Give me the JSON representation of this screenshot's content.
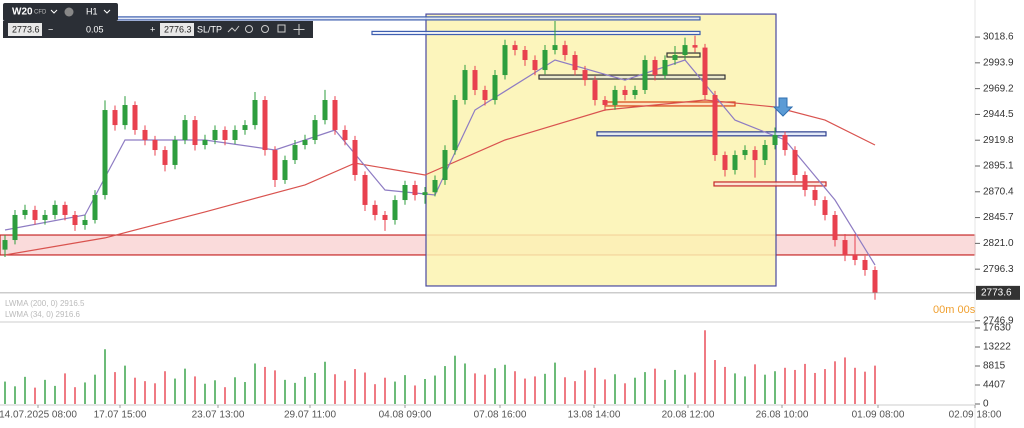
{
  "toolbar": {
    "symbol": "W20",
    "kind": "CFD",
    "timeframe": "H1",
    "bid": "2773.6",
    "step": "0.05",
    "ask": "2776.3",
    "sltp": "SL/TP"
  },
  "chart_data": {
    "type": "candlestick",
    "up_color": "#2e9e3e",
    "down_color": "#e8414f",
    "open": [
      2815.0,
      2824.2,
      2848.2,
      2853.0,
      2843.4,
      2848.2,
      2857.8,
      2848.2,
      2838.6,
      2843.4,
      2867.3,
      2948.7,
      2934.3,
      2953.5,
      2929.6,
      2920.0,
      2910.4,
      2896.1,
      2920.0,
      2939.1,
      2915.2,
      2920.0,
      2929.6,
      2920.0,
      2929.6,
      2934.3,
      2958.3,
      2910.4,
      2881.7,
      2900.8,
      2915.2,
      2920.0,
      2939.1,
      2958.3,
      2929.6,
      2920.0,
      2886.5,
      2857.8,
      2848.2,
      2843.4,
      2862.5,
      2876.9,
      2867.3,
      2870.0,
      2881.7,
      2910.4,
      2958.3,
      2987.0,
      2967.9,
      2958.3,
      2982.2,
      3010.9,
      3006.2,
      2996.6,
      2987.0,
      3006.2,
      3010.9,
      3001.4,
      2987.0,
      2977.4,
      2958.3,
      2953.5,
      2967.9,
      2963.1,
      2967.9,
      2996.6,
      2982.2,
      2996.6,
      3001.4,
      3010.9,
      3008.5,
      2963.1,
      2905.6,
      2891.3,
      2905.6,
      2910.4,
      2900.8,
      2915.2,
      2924.8,
      2910.4,
      2886.5,
      2872.1,
      2862.5,
      2848.2,
      2824.2,
      2809.9,
      2805.1,
      2795.5
    ],
    "high": [
      2829,
      2853,
      2858,
      2857,
      2853,
      2862,
      2861,
      2852,
      2848,
      2872,
      2958,
      2953,
      2962,
      2957,
      2934,
      2924,
      2914,
      2924,
      2944,
      2943,
      2925,
      2934,
      2933,
      2934,
      2939,
      2966,
      2962,
      2914,
      2905,
      2920,
      2925,
      2944,
      2968,
      2962,
      2934,
      2924,
      2890,
      2862,
      2852,
      2867,
      2881,
      2881,
      2875,
      2886,
      2915,
      2963,
      2992,
      2991,
      2972,
      2987,
      3016,
      3015,
      3010,
      3001,
      3011,
      3034,
      3015,
      3005,
      2991,
      2981,
      2962,
      2972,
      2972,
      2972,
      3001,
      3000,
      3001,
      3010,
      3018,
      3020,
      3012,
      2967,
      2909,
      2910,
      2915,
      2914,
      2920,
      2932,
      2928,
      2914,
      2890,
      2876,
      2866,
      2852,
      2830,
      2830,
      2809,
      2799
    ],
    "low": [
      2808,
      2820,
      2844,
      2839,
      2839,
      2844,
      2843,
      2833,
      2834,
      2840,
      2863,
      2929,
      2930,
      2925,
      2915,
      2905,
      2890,
      2892,
      2916,
      2910,
      2911,
      2916,
      2915,
      2916,
      2925,
      2930,
      2905,
      2875,
      2878,
      2897,
      2911,
      2916,
      2935,
      2925,
      2915,
      2881,
      2852,
      2843,
      2833,
      2839,
      2858,
      2862,
      2859,
      2866,
      2877,
      2906,
      2954,
      2963,
      2953,
      2954,
      2978,
      3001,
      2991,
      2982,
      2983,
      3002,
      2996,
      2982,
      2972,
      2953,
      2948,
      2949,
      2958,
      2959,
      2964,
      2977,
      2978,
      2992,
      2997,
      3004,
      2958,
      2900,
      2885,
      2887,
      2901,
      2884,
      2896,
      2911,
      2905,
      2881,
      2866,
      2857,
      2843,
      2818,
      2804,
      2800,
      2790,
      2767
    ],
    "close": [
      2824.2,
      2848.2,
      2853.0,
      2843.4,
      2848.2,
      2857.8,
      2848.2,
      2838.6,
      2843.4,
      2867.3,
      2948.7,
      2934.3,
      2953.5,
      2929.6,
      2920.0,
      2910.4,
      2896.1,
      2920.0,
      2939.1,
      2915.2,
      2920.0,
      2929.6,
      2920.0,
      2929.6,
      2934.3,
      2958.3,
      2910.4,
      2881.7,
      2900.8,
      2915.2,
      2920.0,
      2939.1,
      2958.3,
      2929.6,
      2920.0,
      2886.5,
      2857.8,
      2848.2,
      2843.4,
      2862.5,
      2876.9,
      2867.3,
      2870.0,
      2881.7,
      2910.4,
      2958.3,
      2987.0,
      2967.9,
      2958.3,
      2982.2,
      3010.9,
      3006.2,
      2996.6,
      2987.0,
      3006.2,
      3010.9,
      3001.4,
      2987.0,
      2977.4,
      2958.3,
      2953.5,
      2967.9,
      2963.1,
      2967.9,
      2996.6,
      2982.2,
      2996.6,
      3001.4,
      3010.9,
      3008.5,
      2963.1,
      2905.6,
      2891.3,
      2905.6,
      2910.4,
      2900.8,
      2915.2,
      2924.8,
      2910.4,
      2886.5,
      2872.1,
      2862.5,
      2848.2,
      2824.2,
      2809.9,
      2805.1,
      2795.5,
      2773.6
    ],
    "series": [
      {
        "name": "LWMA (200, 0) 2916.5",
        "color": "#d9534f",
        "x": [
          0,
          10,
          20,
          30,
          35,
          42,
          50,
          60,
          70,
          77,
          82,
          87
        ],
        "values": [
          2809.9,
          2826.2,
          2851.1,
          2877.0,
          2897.9,
          2886.5,
          2920.0,
          2948.7,
          2958.3,
          2951.6,
          2939.1,
          2915.2
        ]
      },
      {
        "name": "LWMA (34, 0) 2916.6",
        "color": "#8e7cc3",
        "x": [
          0,
          8,
          12,
          20,
          27,
          33,
          38,
          43,
          47,
          55,
          62,
          68,
          73,
          78,
          83,
          87
        ],
        "values": [
          2833.8,
          2848.2,
          2920.0,
          2920.0,
          2910.4,
          2929.6,
          2872.1,
          2867.3,
          2948.7,
          2996.6,
          2977.4,
          2996.6,
          2939.1,
          2920.0,
          2862.5,
          2800.3
        ]
      }
    ],
    "zones": [
      {
        "x": [
          -0.5,
          97.5
        ],
        "y": [
          2809.9,
          2829.0
        ],
        "fill": "#f9d5d5",
        "stroke": "#c62828"
      },
      {
        "x": [
          42.1,
          77.1
        ],
        "y": [
          2780.2,
          3040.6
        ],
        "fill": "#fbf3b0",
        "stroke": "#4a4aa0"
      },
      {
        "x": [
          -0.1,
          69.5
        ],
        "y": [
          3035.0,
          3037.9
        ],
        "fill": "#dfe6f7",
        "stroke": "#3f5fb0"
      },
      {
        "x": [
          36.7,
          69.5
        ],
        "y": [
          3021.0,
          3024.0
        ],
        "fill": "#eef2fb",
        "stroke": "#3f5fb0"
      },
      {
        "x": [
          66.2,
          69.5
        ],
        "y": [
          2999.5,
          3003.3
        ],
        "fill": "#fbf3b0",
        "stroke": "#333333"
      },
      {
        "x": [
          53.4,
          72.0
        ],
        "y": [
          2978.4,
          2982.2
        ],
        "fill": "#e8e8d0",
        "stroke": "#333333"
      },
      {
        "x": [
          60.0,
          73.0
        ],
        "y": [
          2952.6,
          2956.4
        ],
        "fill": "#fbe0c0",
        "stroke": "#d84315"
      },
      {
        "x": [
          59.2,
          82.1
        ],
        "y": [
          2924.0,
          2927.8
        ],
        "fill": "#dfe6f7",
        "stroke": "#2d3f8f"
      },
      {
        "x": [
          70.9,
          82.1
        ],
        "y": [
          2876.0,
          2879.8
        ],
        "fill": "#fbe0d8",
        "stroke": "#c62828"
      }
    ],
    "xlim": [
      -0.5,
      97.5
    ],
    "xticks": [
      {
        "value": 3.3,
        "label": "14.07.2025 08:00"
      },
      {
        "value": 11.5,
        "label": "17.07 15:00"
      },
      {
        "value": 21.3,
        "label": "23.07 13:00"
      },
      {
        "value": 30.5,
        "label": "29.07 11:00"
      },
      {
        "value": 40,
        "label": "04.08 09:00"
      },
      {
        "value": 49.5,
        "label": "07.08 16:00"
      },
      {
        "value": 58.9,
        "label": "13.08 14:00"
      },
      {
        "value": 68.3,
        "label": "20.08 12:00"
      },
      {
        "value": 77.7,
        "label": "26.08 10:00"
      },
      {
        "value": 87.3,
        "label": "01.09 08:00"
      },
      {
        "value": 97,
        "label": "02.09 18:00"
      }
    ],
    "ylim": [
      2745.7,
      3044.5
    ],
    "yticks": [
      3018.6,
      2993.9,
      2969.2,
      2944.5,
      2919.8,
      2895.1,
      2870.4,
      2845.7,
      {
        "value": 2821.0,
        "label": "2821.0"
      },
      2796.3,
      2746.9
    ],
    "countdown": "00m 00s",
    "volume": {
      "values": [
        5200,
        4100,
        6300,
        3800,
        5600,
        4200,
        7100,
        3900,
        5000,
        6800,
        12700,
        7400,
        8900,
        6100,
        5300,
        4800,
        7600,
        5900,
        8200,
        6400,
        4700,
        5500,
        3900,
        6200,
        5100,
        9400,
        8600,
        7800,
        5600,
        4900,
        6300,
        7200,
        9800,
        6900,
        5400,
        8100,
        7300,
        4600,
        6100,
        5200,
        6700,
        4300,
        5800,
        6600,
        8800,
        11200,
        9400,
        7100,
        6800,
        8300,
        9100,
        7600,
        5900,
        6400,
        7000,
        9600,
        6200,
        5300,
        7800,
        8400,
        5700,
        6900,
        4800,
        6100,
        7400,
        8200,
        5600,
        7900,
        6800,
        7300,
        17100,
        10200,
        8600,
        7100,
        6400,
        9200,
        6800,
        7600,
        8400,
        7900,
        9300,
        7200,
        8100,
        9900,
        10800,
        8400,
        7500,
        8900
      ],
      "ylim": [
        0,
        18555
      ],
      "yticks": [
        17630,
        13222,
        8815,
        4407,
        0
      ]
    }
  }
}
